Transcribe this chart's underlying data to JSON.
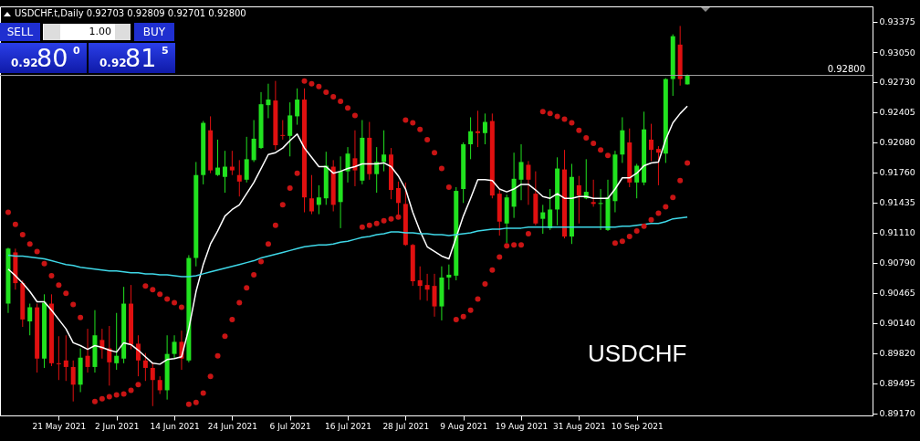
{
  "chart_data": {
    "type": "candlestick",
    "title": "USDCHF.t,Daily 0.92703 0.92809 0.92701 0.92800",
    "categories": [
      null,
      null,
      null,
      null,
      null,
      null,
      null,
      "21 May 2021",
      null,
      null,
      null,
      null,
      null,
      null,
      null,
      "2 Jun 2021",
      null,
      null,
      null,
      null,
      null,
      null,
      null,
      "14 Jun 2021",
      null,
      null,
      null,
      null,
      null,
      null,
      null,
      "24 Jun 2021",
      null,
      null,
      null,
      null,
      null,
      null,
      null,
      "6 Jul 2021",
      null,
      null,
      null,
      null,
      null,
      null,
      null,
      "16 Jul 2021",
      null,
      null,
      null,
      null,
      null,
      null,
      null,
      "28 Jul 2021",
      null,
      null,
      null,
      null,
      null,
      null,
      null,
      "9 Aug 2021",
      null,
      null,
      null,
      null,
      null,
      null,
      null,
      "19 Aug 2021",
      null,
      null,
      null,
      null,
      null,
      null,
      null,
      "31 Aug 2021",
      null,
      null,
      null,
      null,
      null,
      null,
      null,
      "10 Sep 2021",
      null,
      null,
      null,
      null,
      null,
      null,
      null
    ],
    "ohlc": [
      [
        0.9035,
        0.9095,
        0.9025,
        0.9094
      ],
      [
        0.909,
        0.9094,
        0.905,
        0.9057
      ],
      [
        0.9057,
        0.906,
        0.901,
        0.9018
      ],
      [
        0.9016,
        0.9035,
        0.9001,
        0.9031
      ],
      [
        0.9031,
        0.9035,
        0.8961,
        0.8976
      ],
      [
        0.8976,
        0.9045,
        0.8966,
        0.9036
      ],
      [
        0.9035,
        0.9045,
        0.8968,
        0.8971
      ],
      [
        0.8971,
        0.9,
        0.8953,
        0.897
      ],
      [
        0.8974,
        0.9001,
        0.8952,
        0.8967
      ],
      [
        0.8967,
        0.8974,
        0.893,
        0.8948
      ],
      [
        0.8948,
        0.8987,
        0.894,
        0.8977
      ],
      [
        0.8979,
        0.9008,
        0.8961,
        0.8967
      ],
      [
        0.8967,
        0.9028,
        0.8961,
        0.9001
      ],
      [
        0.8996,
        0.9008,
        0.8976,
        0.8986
      ],
      [
        0.8987,
        0.9011,
        0.8947,
        0.8972
      ],
      [
        0.8971,
        0.9025,
        0.8964,
        0.8979
      ],
      [
        0.8976,
        0.9053,
        0.8971,
        0.9035
      ],
      [
        0.9035,
        0.9055,
        0.8986,
        0.8991
      ],
      [
        0.8992,
        0.9001,
        0.8957,
        0.8974
      ],
      [
        0.8974,
        0.8982,
        0.8952,
        0.8966
      ],
      [
        0.8966,
        0.8972,
        0.8925,
        0.8953
      ],
      [
        0.8953,
        0.8957,
        0.8938,
        0.8942
      ],
      [
        0.8942,
        0.9001,
        0.8932,
        0.8981
      ],
      [
        0.8981,
        0.9001,
        0.8976,
        0.8994
      ],
      [
        0.8994,
        0.9006,
        0.8964,
        0.8976
      ],
      [
        0.8974,
        0.9087,
        0.8972,
        0.9084
      ],
      [
        0.9084,
        0.9187,
        0.9075,
        0.9173
      ],
      [
        0.9173,
        0.9231,
        0.9163,
        0.9229
      ],
      [
        0.9221,
        0.9236,
        0.9175,
        0.9178
      ],
      [
        0.9173,
        0.9211,
        0.9172,
        0.9181
      ],
      [
        0.9171,
        0.9199,
        0.9154,
        0.9182
      ],
      [
        0.9182,
        0.9199,
        0.9173,
        0.9178
      ],
      [
        0.9173,
        0.9189,
        0.915,
        0.9166
      ],
      [
        0.9168,
        0.9214,
        0.9165,
        0.919
      ],
      [
        0.9189,
        0.9232,
        0.9187,
        0.9212
      ],
      [
        0.9202,
        0.9262,
        0.9201,
        0.9249
      ],
      [
        0.9248,
        0.9271,
        0.9234,
        0.9254
      ],
      [
        0.9253,
        0.9274,
        0.92,
        0.9205
      ],
      [
        0.9216,
        0.9232,
        0.9211,
        0.9215
      ],
      [
        0.9215,
        0.9251,
        0.9193,
        0.9237
      ],
      [
        0.9236,
        0.9266,
        0.9227,
        0.9254
      ],
      [
        0.9254,
        0.9266,
        0.9133,
        0.9149
      ],
      [
        0.9148,
        0.9173,
        0.9131,
        0.9134
      ],
      [
        0.9141,
        0.9162,
        0.9131,
        0.9149
      ],
      [
        0.9148,
        0.9198,
        0.9141,
        0.9183
      ],
      [
        0.9182,
        0.9189,
        0.9134,
        0.9141
      ],
      [
        0.9144,
        0.9193,
        0.9116,
        0.9177
      ],
      [
        0.9177,
        0.9203,
        0.9165,
        0.9196
      ],
      [
        0.9191,
        0.9221,
        0.9161,
        0.9178
      ],
      [
        0.9167,
        0.9232,
        0.9163,
        0.9213
      ],
      [
        0.9213,
        0.923,
        0.9168,
        0.9174
      ],
      [
        0.9174,
        0.9203,
        0.9154,
        0.9187
      ],
      [
        0.9187,
        0.9221,
        0.9177,
        0.9195
      ],
      [
        0.9195,
        0.9202,
        0.9147,
        0.9157
      ],
      [
        0.9159,
        0.9166,
        0.9129,
        0.9143
      ],
      [
        0.9142,
        0.9165,
        0.9097,
        0.9098
      ],
      [
        0.9098,
        0.9099,
        0.9054,
        0.9059
      ],
      [
        0.906,
        0.9075,
        0.9039,
        0.9054
      ],
      [
        0.9055,
        0.9067,
        0.9038,
        0.905
      ],
      [
        0.9054,
        0.9067,
        0.9021,
        0.9032
      ],
      [
        0.9032,
        0.9075,
        0.9017,
        0.9063
      ],
      [
        0.9063,
        0.9077,
        0.905,
        0.9066
      ],
      [
        0.9065,
        0.916,
        0.906,
        0.9156
      ],
      [
        0.9158,
        0.9208,
        0.9143,
        0.9206
      ],
      [
        0.9206,
        0.9235,
        0.919,
        0.922
      ],
      [
        0.922,
        0.9242,
        0.9203,
        0.9218
      ],
      [
        0.9218,
        0.9239,
        0.9206,
        0.923
      ],
      [
        0.9231,
        0.9239,
        0.9148,
        0.9151
      ],
      [
        0.9153,
        0.9157,
        0.9108,
        0.9123
      ],
      [
        0.9121,
        0.9152,
        0.91,
        0.9149
      ],
      [
        0.9139,
        0.9197,
        0.9127,
        0.9169
      ],
      [
        0.9168,
        0.9206,
        0.9146,
        0.9187
      ],
      [
        0.9184,
        0.9188,
        0.9141,
        0.9168
      ],
      [
        0.9153,
        0.9177,
        0.9119,
        0.9121
      ],
      [
        0.9126,
        0.9141,
        0.911,
        0.9133
      ],
      [
        0.9116,
        0.9158,
        0.9114,
        0.9136
      ],
      [
        0.9136,
        0.9192,
        0.9119,
        0.918
      ],
      [
        0.9179,
        0.92,
        0.9105,
        0.9107
      ],
      [
        0.9107,
        0.9185,
        0.9099,
        0.9171
      ],
      [
        0.9162,
        0.9172,
        0.9121,
        0.9151
      ],
      [
        0.9148,
        0.919,
        0.9147,
        0.9155
      ],
      [
        0.9144,
        0.9168,
        0.9139,
        0.9142
      ],
      [
        0.9142,
        0.9158,
        0.9114,
        0.9143
      ],
      [
        0.9114,
        0.9168,
        0.9113,
        0.9149
      ],
      [
        0.9145,
        0.9199,
        0.9133,
        0.9195
      ],
      [
        0.9195,
        0.9235,
        0.9186,
        0.9221
      ],
      [
        0.9208,
        0.9223,
        0.916,
        0.9165
      ],
      [
        0.9165,
        0.9185,
        0.9148,
        0.9183
      ],
      [
        0.9165,
        0.9241,
        0.9162,
        0.9222
      ],
      [
        0.9211,
        0.9228,
        0.9188,
        0.92
      ],
      [
        0.9201,
        0.9204,
        0.9162,
        0.9197
      ],
      [
        0.9196,
        0.9277,
        0.9186,
        0.9276
      ],
      [
        0.9276,
        0.9324,
        0.9258,
        0.9322
      ],
      [
        0.9313,
        0.9333,
        0.9269,
        0.9276
      ],
      [
        0.92703,
        0.92809,
        0.92701,
        0.928
      ]
    ],
    "series": [
      {
        "type": "line",
        "color": "#ffffff",
        "values": [
          0.9072,
          0.9065,
          0.9057,
          0.9048,
          0.9037,
          0.9037,
          0.9028,
          0.9018,
          0.9008,
          0.8993,
          0.899,
          0.8986,
          0.899,
          0.8988,
          0.8985,
          0.8983,
          0.8993,
          0.8991,
          0.8985,
          0.8978,
          0.8971,
          0.897,
          0.8975,
          0.8976,
          0.8978,
          0.9008,
          0.9048,
          0.9077,
          0.9099,
          0.9113,
          0.9129,
          0.9136,
          0.9141,
          0.9153,
          0.9165,
          0.918,
          0.9195,
          0.9197,
          0.9202,
          0.921,
          0.9217,
          0.9202,
          0.9192,
          0.9182,
          0.9182,
          0.9175,
          0.9177,
          0.918,
          0.9182,
          0.9185,
          0.9185,
          0.9185,
          0.9186,
          0.9182,
          0.9172,
          0.9158,
          0.9133,
          0.9113,
          0.9096,
          0.9091,
          0.9086,
          0.9083,
          0.9106,
          0.9129,
          0.9148,
          0.9168,
          0.9168,
          0.9167,
          0.9158,
          0.9155,
          0.9158,
          0.9163,
          0.9163,
          0.9157,
          0.915,
          0.9148,
          0.9153,
          0.9148,
          0.9148,
          0.915,
          0.915,
          0.9148,
          0.9148,
          0.9148,
          0.9158,
          0.917,
          0.917,
          0.9175,
          0.9183,
          0.9186,
          0.9187,
          0.9211,
          0.9229,
          0.9239,
          0.9247
        ]
      },
      {
        "type": "line",
        "color": "#3fd8e8",
        "values": [
          0.9087,
          0.9086,
          0.9086,
          0.9085,
          0.9084,
          0.9083,
          0.9081,
          0.9079,
          0.9077,
          0.9076,
          0.9074,
          0.9073,
          0.9072,
          0.9071,
          0.907,
          0.907,
          0.9069,
          0.9068,
          0.9068,
          0.9067,
          0.9067,
          0.9066,
          0.9066,
          0.9065,
          0.9064,
          0.9064,
          0.9065,
          0.9067,
          0.9069,
          0.9071,
          0.9073,
          0.9075,
          0.9077,
          0.9079,
          0.9081,
          0.9084,
          0.9086,
          0.9088,
          0.909,
          0.9092,
          0.9094,
          0.9096,
          0.9097,
          0.9098,
          0.9098,
          0.9099,
          0.9101,
          0.9102,
          0.9104,
          0.9106,
          0.9107,
          0.9109,
          0.911,
          0.9112,
          0.9112,
          0.9111,
          0.9111,
          0.911,
          0.911,
          0.9109,
          0.9109,
          0.9108,
          0.9109,
          0.911,
          0.9111,
          0.9113,
          0.9114,
          0.9115,
          0.9115,
          0.9116,
          0.9116,
          0.9116,
          0.9117,
          0.9117,
          0.9117,
          0.9117,
          0.9117,
          0.9117,
          0.9117,
          0.9117,
          0.9117,
          0.9117,
          0.9117,
          0.9117,
          0.9117,
          0.9118,
          0.9118,
          0.9119,
          0.912,
          0.9121,
          0.9121,
          0.9123,
          0.9126,
          0.9127,
          0.9128
        ]
      },
      {
        "type": "scatter",
        "color": "#c81414",
        "marker": "circle",
        "values": [
          0.9133,
          0.912,
          0.9109,
          0.9099,
          0.9091,
          0.9078,
          0.9065,
          0.9055,
          0.9046,
          0.9034,
          0.902,
          null,
          0.893,
          0.8933,
          0.8935,
          0.8937,
          0.8938,
          0.8942,
          0.8948,
          0.9054,
          0.905,
          0.9045,
          0.904,
          0.9036,
          0.9031,
          0.8927,
          0.8929,
          0.8939,
          0.8957,
          0.8979,
          0.9,
          0.9018,
          0.9036,
          0.9052,
          0.9066,
          0.908,
          0.9099,
          0.9119,
          0.9141,
          0.9159,
          0.9175,
          0.9274,
          0.9271,
          0.9268,
          0.9262,
          0.9257,
          0.9252,
          0.9245,
          0.9237,
          0.9117,
          0.9119,
          0.9121,
          0.9124,
          0.9126,
          0.9128,
          0.9232,
          0.9229,
          0.9222,
          0.9211,
          0.9197,
          0.918,
          0.916,
          0.9018,
          0.9021,
          0.9028,
          0.904,
          0.9056,
          0.9071,
          0.9085,
          0.9097,
          0.9098,
          0.9098,
          0.911,
          null,
          0.9241,
          0.9239,
          0.9236,
          0.9233,
          0.9229,
          0.9221,
          0.9213,
          0.9207,
          0.92,
          0.9194,
          0.91,
          0.9102,
          0.9107,
          0.9113,
          0.9118,
          0.9125,
          0.9132,
          0.9139,
          0.9149,
          0.9167,
          0.9186
        ]
      }
    ],
    "ylim": [
      0.8915,
      0.9354
    ],
    "yticks": [
      {
        "value": 0.93375,
        "label": "0.93375"
      },
      {
        "value": 0.9305,
        "label": "0.93050"
      },
      {
        "value": 0.9273,
        "label": "0.92730"
      },
      {
        "value": 0.92405,
        "label": "0.92405"
      },
      {
        "value": 0.9208,
        "label": "0.92080"
      },
      {
        "value": 0.9176,
        "label": "0.91760"
      },
      {
        "value": 0.91435,
        "label": "0.91435"
      },
      {
        "value": 0.9111,
        "label": "0.91110"
      },
      {
        "value": 0.9079,
        "label": "0.90790"
      },
      {
        "value": 0.90465,
        "label": "0.90465"
      },
      {
        "value": 0.9014,
        "label": "0.90140"
      },
      {
        "value": 0.8982,
        "label": "0.89820"
      },
      {
        "value": 0.89495,
        "label": "0.89495"
      },
      {
        "value": 0.8917,
        "label": "0.89170"
      }
    ],
    "ref_lines": [
      {
        "axis": "y",
        "value": 0.928,
        "label": "0.92800",
        "color": "#a0a0a0"
      }
    ],
    "annotations": [
      "USDCHF",
      "SELL",
      "1.00",
      "BUY",
      "0.92",
      "80",
      "0",
      "0.92",
      "81",
      "5"
    ]
  }
}
